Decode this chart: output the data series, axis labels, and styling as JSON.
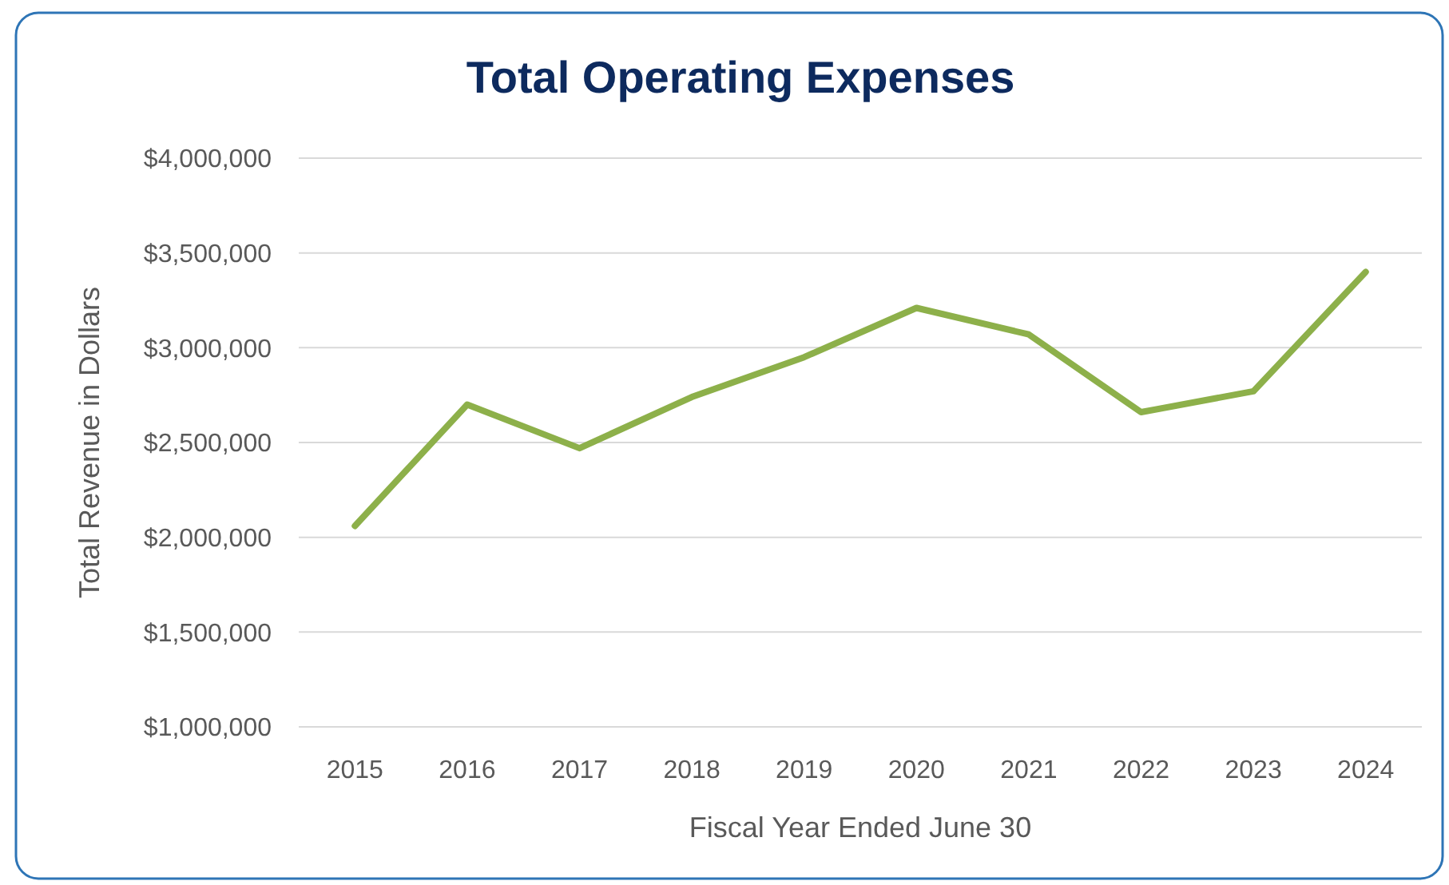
{
  "chart_data": {
    "type": "line",
    "title": "Total Operating Expenses",
    "xlabel": "Fiscal Year Ended June 30",
    "ylabel": "Total Revenue in Dollars",
    "categories": [
      "2015",
      "2016",
      "2017",
      "2018",
      "2019",
      "2020",
      "2021",
      "2022",
      "2023",
      "2024"
    ],
    "series": [
      {
        "color": "#8db04a",
        "values": [
          2060000,
          2700000,
          2470000,
          2740000,
          2950000,
          3210000,
          3070000,
          2660000,
          2770000,
          3400000
        ]
      }
    ],
    "ylim": [
      1000000,
      4000000
    ],
    "yticks": [
      {
        "value": 1000000,
        "label": "$1,000,000"
      },
      {
        "value": 1500000,
        "label": "$1,500,000"
      },
      {
        "value": 2000000,
        "label": "$2,000,000"
      },
      {
        "value": 2500000,
        "label": "$2,500,000"
      },
      {
        "value": 3000000,
        "label": "$3,000,000"
      },
      {
        "value": 3500000,
        "label": "$3,500,000"
      },
      {
        "value": 4000000,
        "label": "$4,000,000"
      }
    ],
    "grid": "y",
    "marker": "none",
    "line_style": "solid"
  }
}
